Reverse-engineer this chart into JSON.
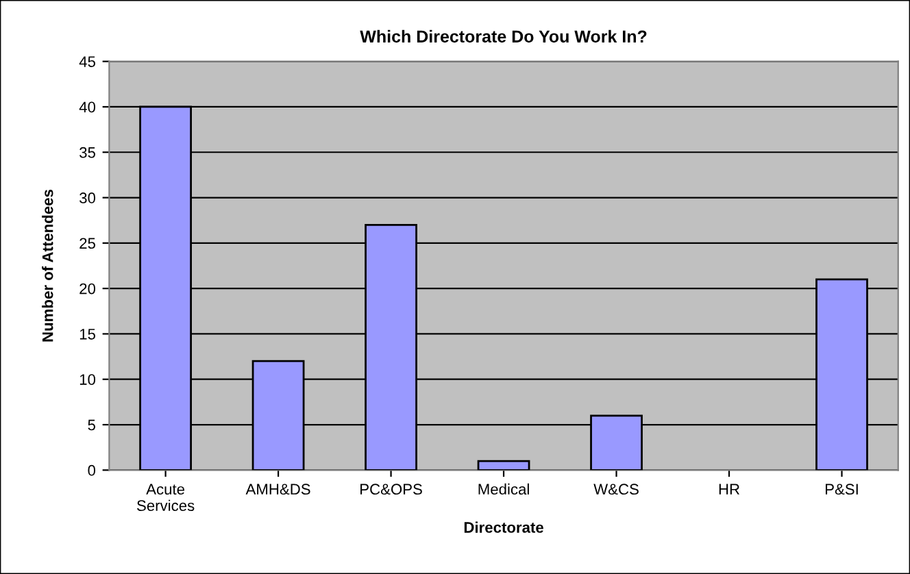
{
  "chart_data": {
    "type": "bar",
    "title": "Which Directorate Do You Work In?",
    "xlabel": "Directorate",
    "ylabel": "Number of Attendees",
    "categories": [
      "Acute\nServices",
      "AMH&DS",
      "PC&OPS",
      "Medical",
      "W&CS",
      "HR",
      "P&SI"
    ],
    "values": [
      40,
      12,
      27,
      1,
      6,
      0,
      21
    ],
    "color": "#9999ff",
    "ylim": [
      0,
      45
    ],
    "yticks": [
      0,
      5,
      10,
      15,
      20,
      25,
      30,
      35,
      40,
      45
    ],
    "grid": "y",
    "legend": false
  }
}
